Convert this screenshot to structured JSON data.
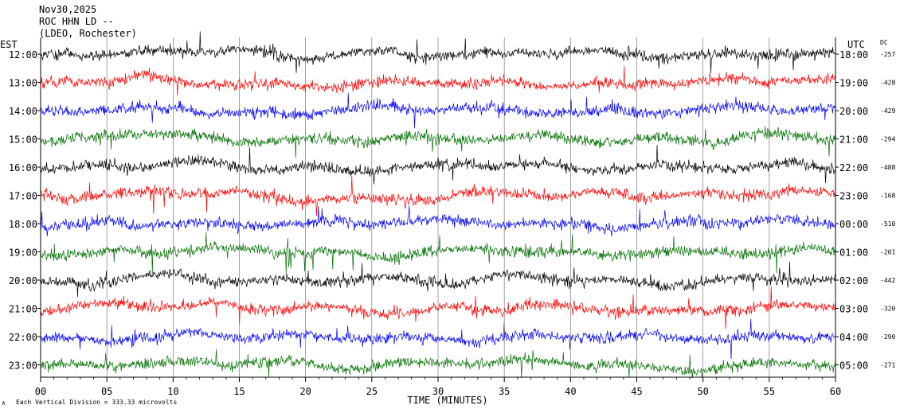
{
  "chart_data": {
    "type": "line",
    "title": "Nov30,2025",
    "station": "ROC HHN LD --",
    "location": "(LDEO, Rochester)",
    "left_axis_label": "EST",
    "right_axis_label": "UTC",
    "dc_label": "DC",
    "xlabel": "TIME (MINUTES)",
    "xlim": [
      0,
      60
    ],
    "x_ticks": [
      "00",
      "05",
      "10",
      "15",
      "20",
      "25",
      "30",
      "35",
      "40",
      "45",
      "50",
      "55",
      "60"
    ],
    "scale_note": "Each Vertical Division =  333.33 microvolts",
    "trace_colors": [
      "#000000",
      "#ff0000",
      "#0000ff",
      "#007000"
    ],
    "series": [
      {
        "est": "12:00",
        "utc": "18:00",
        "dc": "-257",
        "color": "#000000"
      },
      {
        "est": "13:00",
        "utc": "19:00",
        "dc": "-428",
        "color": "#ff0000"
      },
      {
        "est": "14:00",
        "utc": "20:00",
        "dc": "-429",
        "color": "#0000ff"
      },
      {
        "est": "15:00",
        "utc": "21:00",
        "dc": "-294",
        "color": "#007000"
      },
      {
        "est": "16:00",
        "utc": "22:00",
        "dc": "-488",
        "color": "#000000"
      },
      {
        "est": "17:00",
        "utc": "23:00",
        "dc": "-168",
        "color": "#ff0000"
      },
      {
        "est": "18:00",
        "utc": "00:00",
        "dc": "-510",
        "color": "#0000ff"
      },
      {
        "est": "19:00",
        "utc": "01:00",
        "dc": "-201",
        "color": "#007000"
      },
      {
        "est": "20:00",
        "utc": "02:00",
        "dc": "-442",
        "color": "#000000"
      },
      {
        "est": "21:00",
        "utc": "03:00",
        "dc": "-320",
        "color": "#ff0000"
      },
      {
        "est": "22:00",
        "utc": "04:00",
        "dc": "-290",
        "color": "#0000ff"
      },
      {
        "est": "23:00",
        "utc": "05:00",
        "dc": "-271",
        "color": "#007000"
      }
    ]
  }
}
